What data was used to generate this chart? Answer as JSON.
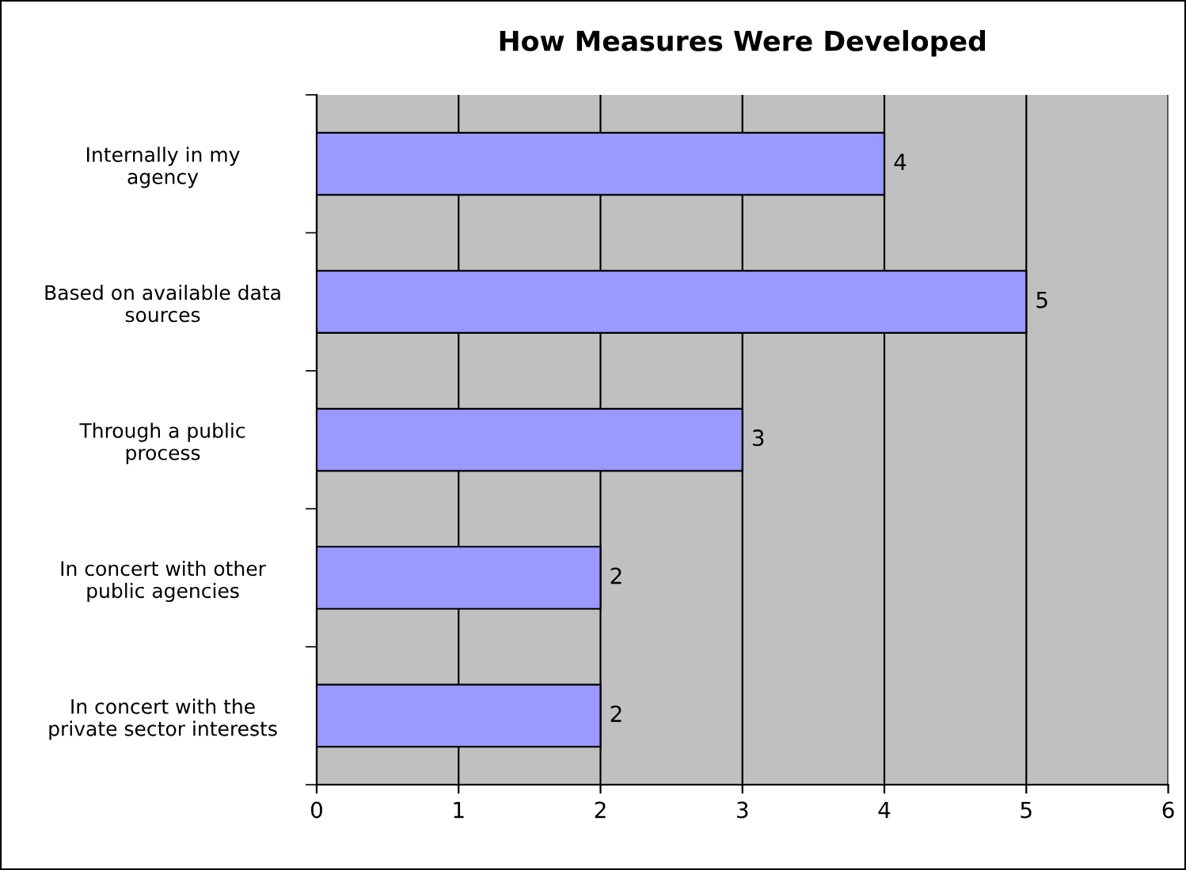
{
  "chart_data": {
    "type": "bar",
    "orientation": "horizontal",
    "title": "How Measures Were Developed",
    "categories": [
      "Internally in my\nagency",
      "Based on available data\nsources",
      "Through a public\nprocess",
      "In concert with other\npublic agencies",
      "In concert with the\nprivate sector interests"
    ],
    "values": [
      4,
      5,
      3,
      2,
      2
    ],
    "color": "#9999ff",
    "xlim": [
      0,
      6
    ],
    "xticks": [
      0,
      1,
      2,
      3,
      4,
      5,
      6
    ],
    "grid": "x",
    "data_labels": true
  }
}
